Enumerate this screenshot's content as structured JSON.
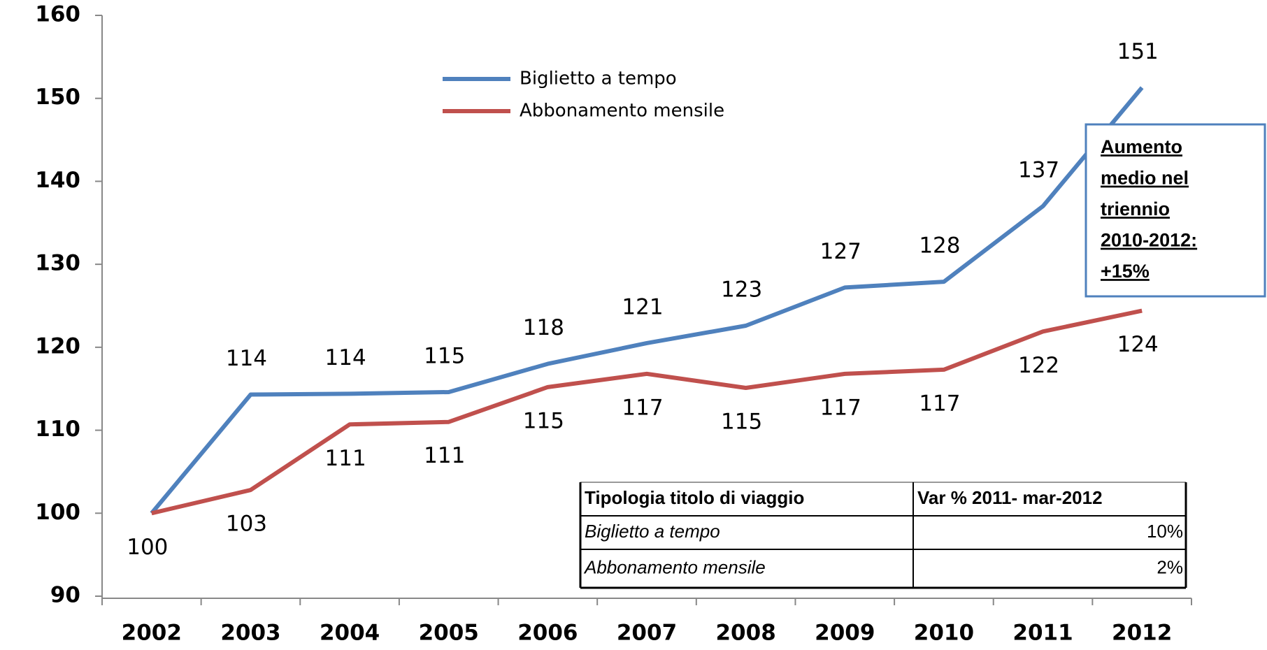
{
  "chart_data": {
    "type": "line",
    "categories": [
      "2002",
      "2003",
      "2004",
      "2005",
      "2006",
      "2007",
      "2008",
      "2009",
      "2010",
      "2011",
      "2012"
    ],
    "series": [
      {
        "name": "Biglietto a tempo",
        "color": "#4f81bd",
        "values": [
          100,
          114.3,
          114.4,
          114.6,
          118,
          120.5,
          122.6,
          127.2,
          127.9,
          137,
          151.3
        ],
        "value_labels": [
          null,
          "114",
          "114",
          "115",
          "118",
          "121",
          "123",
          "127",
          "128",
          "137",
          "151"
        ]
      },
      {
        "name": "Abbonamento mensile",
        "color": "#c0504d",
        "values": [
          100,
          102.8,
          110.7,
          111,
          115.2,
          116.8,
          115.1,
          116.8,
          117.3,
          121.9,
          124.4
        ],
        "value_labels": [
          "100",
          "103",
          "111",
          "111",
          "115",
          "117",
          "115",
          "117",
          "117",
          "122",
          "124"
        ]
      }
    ],
    "ylim": [
      90,
      160
    ],
    "yticks": [
      90,
      100,
      110,
      120,
      130,
      140,
      150,
      160
    ],
    "grid": false,
    "annotation": [
      "Aumento",
      "medio nel",
      "triennio",
      "2010-2012:",
      "+15%"
    ],
    "table": {
      "header": [
        "Tipologia titolo di viaggio",
        "Var % 2011- mar-2012"
      ],
      "rows": [
        [
          "Biglietto a tempo",
          "10%"
        ],
        [
          "Abbonamento mensile",
          "2%"
        ]
      ]
    }
  }
}
